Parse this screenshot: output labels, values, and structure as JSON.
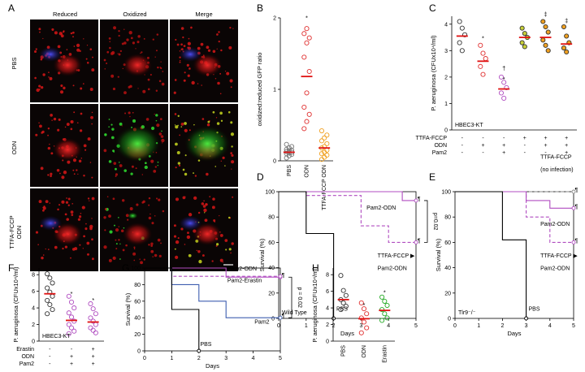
{
  "panels": {
    "A": {
      "label": "A",
      "columns": [
        "Reduced",
        "Oxidized",
        "Merge"
      ],
      "rows": [
        "PBS",
        "ODN",
        "TTFA-FCCP\nODN"
      ],
      "colors": {
        "reduced": "#e01818",
        "oxidized": "#22cc22",
        "blue": "#3a3ae0",
        "bg": "#0a0505"
      }
    },
    "B": {
      "label": "B",
      "chart_data": {
        "type": "scatter",
        "ylabel": "oxidized:reduced GFP ratio",
        "ylim": [
          0,
          2.0
        ],
        "yticks": [
          0,
          1,
          2
        ],
        "categories": [
          "PBS",
          "ODN",
          "TTFA-FCCP\nODN"
        ],
        "series": [
          {
            "category": "PBS",
            "color": "#777777",
            "mean": 0.12,
            "values": [
              0.04,
              0.07,
              0.09,
              0.1,
              0.11,
              0.12,
              0.13,
              0.14,
              0.15,
              0.16,
              0.18,
              0.2,
              0.23
            ]
          },
          {
            "category": "ODN",
            "color": "#e03030",
            "mean": 1.18,
            "values": [
              0.45,
              0.55,
              0.65,
              0.75,
              0.95,
              1.25,
              1.45,
              1.65,
              1.72,
              1.78,
              1.85
            ]
          },
          {
            "category": "TTFA-FCCP\nODN",
            "color": "#f0a020",
            "mean": 0.18,
            "values": [
              0.02,
              0.05,
              0.08,
              0.1,
              0.12,
              0.15,
              0.18,
              0.2,
              0.24,
              0.28,
              0.32,
              0.36,
              0.42
            ]
          }
        ],
        "annotations": [
          {
            "text": "*",
            "category": "ODN",
            "y": 1.97
          }
        ]
      }
    },
    "C": {
      "label": "C",
      "chart_data": {
        "type": "scatter",
        "ylabel": "P. aeruginosa (CFUx10⁴/ml)",
        "ylim": [
          0,
          4.3
        ],
        "yticks": [
          0,
          1,
          2,
          3,
          4
        ],
        "inner_label": "HBEC3-KT",
        "row_labels": [
          "TTFA-FCCP",
          "ODN",
          "Pam2"
        ],
        "group_conditions": [
          [
            "-",
            "-",
            "-"
          ],
          [
            "-",
            "+",
            "-"
          ],
          [
            "-",
            "+",
            "+"
          ],
          [
            "+",
            "-",
            "-"
          ],
          [
            "+",
            "+",
            "-"
          ],
          [
            "+",
            "+",
            "+"
          ]
        ],
        "groups": [
          {
            "color": "#333333",
            "fill": "none",
            "mean": 3.55,
            "values": [
              4.1,
              3.85,
              3.6,
              3.3,
              3.0
            ]
          },
          {
            "color": "#e03030",
            "fill": "none",
            "mean": 2.6,
            "values": [
              3.2,
              2.9,
              2.7,
              2.4,
              2.1
            ]
          },
          {
            "color": "#b04cc0",
            "fill": "none",
            "mean": 1.55,
            "values": [
              2.0,
              1.8,
              1.6,
              1.4,
              1.2
            ]
          },
          {
            "color": "#333333",
            "fill": "#c8d038",
            "mean": 3.5,
            "values": [
              3.85,
              3.65,
              3.5,
              3.3,
              3.15
            ]
          },
          {
            "color": "#333333",
            "fill": "#f0a020",
            "mean": 3.5,
            "values": [
              4.1,
              3.9,
              3.7,
              3.4,
              3.2,
              3.0
            ]
          },
          {
            "color": "#333333",
            "fill": "#f0a020",
            "mean": 3.25,
            "values": [
              3.9,
              3.55,
              3.3,
              3.1,
              2.95
            ]
          }
        ],
        "annotations": [
          {
            "text": "*",
            "group": 1,
            "y": 3.4
          },
          {
            "text": "†",
            "group": 2,
            "y": 2.25
          },
          {
            "text": "*",
            "group": 2,
            "y": 1.85
          },
          {
            "text": "‡",
            "group": 4,
            "y": 4.3
          },
          {
            "text": "‡",
            "group": 5,
            "y": 4.05
          }
        ]
      }
    },
    "D": {
      "label": "D",
      "chart_data": {
        "type": "line",
        "ylabel": "Survival (%)",
        "xlabel": "Days",
        "xlim": [
          0,
          5
        ],
        "ylim": [
          0,
          100
        ],
        "xticks": [
          0,
          1,
          2,
          3,
          4,
          5
        ],
        "yticks": [
          0,
          20,
          40,
          60,
          80,
          100
        ],
        "inner_label": "Wild Type",
        "series": [
          {
            "name": "Pam2-ODN",
            "color": "#b04cc0",
            "dash": false,
            "points": [
              [
                0,
                100
              ],
              [
                4.5,
                100
              ],
              [
                4.5,
                93
              ],
              [
                5,
                93
              ]
            ]
          },
          {
            "name": "TTFA-FCCP\nPam2-ODN",
            "color": "#b04cc0",
            "dash": true,
            "points": [
              [
                0,
                100
              ],
              [
                1,
                100
              ],
              [
                1,
                97
              ],
              [
                3,
                97
              ],
              [
                3,
                73
              ],
              [
                4,
                73
              ],
              [
                4,
                60
              ],
              [
                5,
                60
              ]
            ]
          },
          {
            "name": "PBS",
            "color": "#000000",
            "dash": false,
            "points": [
              [
                0,
                100
              ],
              [
                1,
                100
              ],
              [
                1,
                67
              ],
              [
                2,
                67
              ],
              [
                2,
                0
              ]
            ]
          }
        ],
        "labels": [
          {
            "text": "Pam2-ODN",
            "x": 3.2,
            "y": 86
          },
          {
            "text": "TTFA-FCCP ▶",
            "x": 3.6,
            "y": 48
          },
          {
            "text": "Pam2-ODN",
            "x": 3.6,
            "y": 38
          },
          {
            "text": "PBS",
            "x": 2.1,
            "y": 6
          },
          {
            "text": "¶",
            "x": 5.05,
            "y": 93
          },
          {
            "text": "¶",
            "x": 5.05,
            "y": 60
          }
        ],
        "pvalue": "p=0.02"
      }
    },
    "E": {
      "label": "E",
      "chart_data": {
        "type": "line",
        "ylabel": "Survival (%)",
        "xlabel": "Days",
        "xlim": [
          0,
          5
        ],
        "ylim": [
          0,
          100
        ],
        "xticks": [
          0,
          1,
          2,
          3,
          4,
          5
        ],
        "yticks": [
          0,
          20,
          40,
          60,
          80,
          100
        ],
        "inner_label": "Tlr9⁻/⁻",
        "series": [
          {
            "name": "TTFA-FCCP\n(no infection)",
            "color": "#888888",
            "dash": true,
            "points": [
              [
                0,
                100
              ],
              [
                5,
                100
              ]
            ]
          },
          {
            "name": "Pam2-ODN",
            "color": "#b04cc0",
            "dash": false,
            "points": [
              [
                0,
                100
              ],
              [
                3,
                100
              ],
              [
                3,
                93
              ],
              [
                4,
                93
              ],
              [
                4,
                87
              ],
              [
                5,
                87
              ]
            ]
          },
          {
            "name": "TTFA-FCCP\nPam2-ODN",
            "color": "#b04cc0",
            "dash": true,
            "points": [
              [
                0,
                100
              ],
              [
                3,
                100
              ],
              [
                3,
                80
              ],
              [
                4,
                80
              ],
              [
                4,
                60
              ],
              [
                5,
                60
              ]
            ]
          },
          {
            "name": "PBS",
            "color": "#000000",
            "dash": false,
            "points": [
              [
                0,
                100
              ],
              [
                2,
                100
              ],
              [
                2,
                62
              ],
              [
                3,
                62
              ],
              [
                3,
                0
              ]
            ]
          }
        ],
        "labels": [
          {
            "text": "TTFA-FCCP",
            "x": 3.6,
            "y": 126
          },
          {
            "text": "(no infection)",
            "x": 3.6,
            "y": 116
          },
          {
            "text": "Pam2-ODN",
            "x": 3.6,
            "y": 73
          },
          {
            "text": "TTFA-FCCP ▶",
            "x": 3.6,
            "y": 48
          },
          {
            "text": "Pam2-ODN",
            "x": 3.6,
            "y": 38
          },
          {
            "text": "PBS",
            "x": 3.1,
            "y": 6
          },
          {
            "text": "¶",
            "x": 5.05,
            "y": 100
          },
          {
            "text": "¶",
            "x": 5.05,
            "y": 87
          },
          {
            "text": "¶",
            "x": 5.05,
            "y": 60
          }
        ]
      }
    },
    "F": {
      "label": "F",
      "chart_data": {
        "type": "scatter",
        "ylabel": "P. aeruginosa (CFUx10⁴/ml)",
        "ylim": [
          0,
          8.8
        ],
        "yticks": [
          0,
          2,
          4,
          6,
          8
        ],
        "inner_label": "HBEC3-KT",
        "row_labels": [
          "Erastin",
          "ODN",
          "Pam2"
        ],
        "group_conditions": [
          [
            "-",
            "-",
            "-"
          ],
          [
            "-",
            "+",
            "+"
          ],
          [
            "+",
            "+",
            "+"
          ]
        ],
        "groups": [
          {
            "color": "#333333",
            "fill": "none",
            "mean": 5.7,
            "values": [
              8.1,
              7.6,
              7.0,
              6.4,
              5.9,
              5.4,
              4.9,
              4.4,
              3.8,
              3.3
            ]
          },
          {
            "color": "#b04cc0",
            "fill": "none",
            "mean": 2.5,
            "values": [
              5.4,
              4.7,
              4.0,
              3.4,
              2.9,
              2.4,
              2.0,
              1.6,
              1.2,
              0.9
            ]
          },
          {
            "color": "#b04cc0",
            "fill": "none",
            "mean": 2.3,
            "values": [
              4.5,
              3.9,
              3.3,
              2.8,
              2.4,
              2.0,
              1.6,
              1.3,
              1.0
            ]
          }
        ],
        "annotations": [
          {
            "text": "*",
            "group": 1,
            "y": 5.5
          },
          {
            "text": "*",
            "group": 2,
            "y": 4.7
          }
        ]
      }
    },
    "G": {
      "label": "G",
      "chart_data": {
        "type": "line",
        "ylabel": "Survival (%)",
        "xlabel": "Days",
        "xlim": [
          0,
          5
        ],
        "ylim": [
          0,
          100
        ],
        "xticks": [
          0,
          1,
          2,
          3,
          4,
          5
        ],
        "yticks": [
          0,
          20,
          40,
          60,
          80,
          100
        ],
        "series": [
          {
            "name": "Pam2-ODN",
            "color": "#b04cc0",
            "dash": false,
            "points": [
              [
                0,
                100
              ],
              [
                3,
                100
              ],
              [
                3,
                89
              ],
              [
                5,
                89
              ]
            ]
          },
          {
            "name": "Pam2-Erastin",
            "color": "#b04cc0",
            "dash": true,
            "points": [
              [
                0,
                100
              ],
              [
                1,
                100
              ],
              [
                1,
                90
              ],
              [
                5,
                90
              ]
            ]
          },
          {
            "name": "Pam2",
            "color": "#3e5eb0",
            "dash": false,
            "points": [
              [
                0,
                100
              ],
              [
                1,
                100
              ],
              [
                1,
                80
              ],
              [
                2,
                80
              ],
              [
                2,
                60
              ],
              [
                3,
                60
              ],
              [
                3,
                40
              ],
              [
                5,
                40
              ]
            ]
          },
          {
            "name": "PBS",
            "color": "#000000",
            "dash": false,
            "points": [
              [
                0,
                100
              ],
              [
                1,
                100
              ],
              [
                1,
                50
              ],
              [
                2,
                50
              ],
              [
                2,
                0
              ]
            ]
          }
        ],
        "labels": [
          {
            "text": "Pam2-ODN",
            "x": 3.05,
            "y": 97
          },
          {
            "text": "Pam2-Erastin",
            "x": 3.05,
            "y": 83
          },
          {
            "text": "Pam2",
            "x": 4.05,
            "y": 33
          },
          {
            "text": "PBS",
            "x": 2.05,
            "y": 6
          },
          {
            "text": "¶",
            "x": 5.05,
            "y": 89
          },
          {
            "text": "¶",
            "x": 5.05,
            "y": 40
          }
        ],
        "pvalue": "p = 0.02"
      }
    },
    "H": {
      "label": "H",
      "chart_data": {
        "type": "scatter",
        "ylabel": "P. aeruginosa (CFUx10⁴/ml)",
        "ylim": [
          0,
          8.8
        ],
        "yticks": [
          0,
          2,
          4,
          6,
          8
        ],
        "categories": [
          "PBS",
          "ODN",
          "Erastin"
        ],
        "groups": [
          {
            "color": "#333333",
            "fill": "none",
            "mean": 5.0,
            "values": [
              7.9,
              6.1,
              5.5,
              5.0,
              4.6,
              4.2,
              3.8
            ]
          },
          {
            "color": "#e03030",
            "fill": "none",
            "mean": 2.7,
            "values": [
              4.6,
              3.9,
              3.3,
              2.8,
              2.3,
              1.6,
              1.0
            ]
          },
          {
            "color": "#22aa22",
            "fill": "none",
            "mean": 3.7,
            "values": [
              5.3,
              4.8,
              4.3,
              3.8,
              3.3,
              2.8,
              2.5
            ]
          }
        ],
        "annotations": [
          {
            "text": "*",
            "group": 1,
            "y": 4.1
          },
          {
            "text": "*",
            "group": 2,
            "y": 5.6
          }
        ]
      }
    }
  }
}
